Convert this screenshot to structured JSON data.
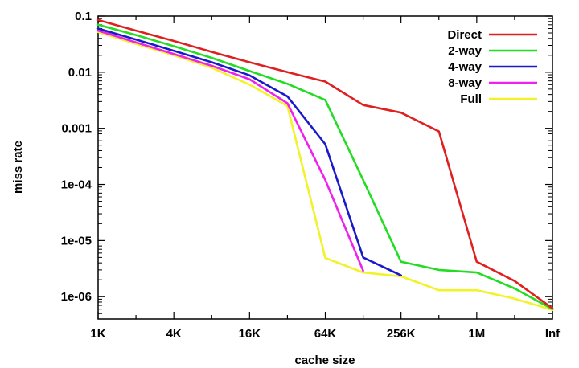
{
  "chart_data": {
    "type": "line",
    "title": "",
    "xlabel": "cache size",
    "ylabel": "miss rate",
    "y_scale": "log",
    "ylim": [
      4e-07,
      0.1
    ],
    "grid": false,
    "legend_position": "top-right",
    "x_ticks": [
      "1K",
      "4K",
      "16K",
      "64K",
      "256K",
      "1M",
      "Inf"
    ],
    "y_ticks": [
      {
        "value": 0.1,
        "label": "0.1"
      },
      {
        "value": 0.01,
        "label": "0.01"
      },
      {
        "value": 0.001,
        "label": "0.001"
      },
      {
        "value": 0.0001,
        "label": "1e-04"
      },
      {
        "value": 1e-05,
        "label": "1e-05"
      },
      {
        "value": 1e-06,
        "label": "1e-06"
      }
    ],
    "x": [
      "1K",
      "2K",
      "4K",
      "8K",
      "16K",
      "32K",
      "64K",
      "128K",
      "256K",
      "512K",
      "1M",
      "2M",
      "Inf"
    ],
    "series": [
      {
        "name": "Direct",
        "color": "#e02020",
        "values": [
          0.085,
          0.055,
          0.036,
          0.023,
          0.015,
          0.01,
          0.0068,
          0.0026,
          0.0019,
          0.00088,
          4.2e-06,
          1.9e-06,
          6.2e-07
        ]
      },
      {
        "name": "2-way",
        "color": "#22dd22",
        "values": [
          0.07,
          0.046,
          0.029,
          0.018,
          0.0105,
          0.0062,
          0.0032,
          0.00012,
          4.2e-06,
          3e-06,
          2.7e-06,
          1.4e-06,
          6e-07
        ]
      },
      {
        "name": "4-way",
        "color": "#1a1acc",
        "values": [
          0.06,
          0.038,
          0.024,
          0.015,
          0.0088,
          0.0037,
          0.00052,
          5e-06,
          2.4e-06,
          null,
          null,
          null,
          null
        ]
      },
      {
        "name": "8-way",
        "color": "#ee22ee",
        "values": [
          0.055,
          0.034,
          0.021,
          0.013,
          0.0075,
          0.0028,
          0.00012,
          2.9e-06,
          null,
          null,
          null,
          null,
          null
        ]
      },
      {
        "name": "Full",
        "color": "#f2f22a",
        "values": [
          0.052,
          0.032,
          0.02,
          0.012,
          0.006,
          0.0025,
          4.9e-06,
          2.7e-06,
          2.3e-06,
          1.3e-06,
          1.3e-06,
          9.2e-07,
          5.8e-07
        ]
      }
    ]
  }
}
